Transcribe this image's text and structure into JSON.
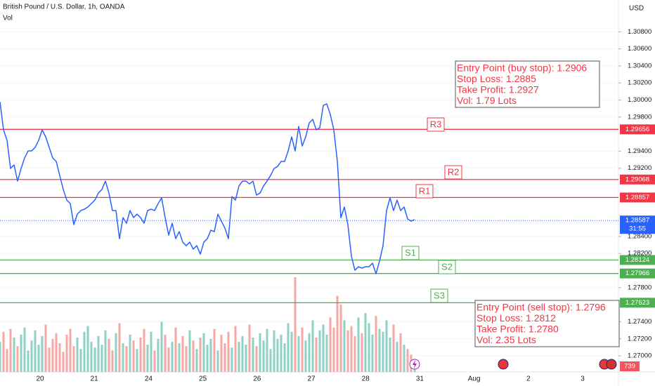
{
  "chart_data": {
    "type": "line",
    "title": "British Pound / U.S. Dollar, 1h, OANDA",
    "volume_label": "Vol",
    "currency": "USD",
    "color": "#2962ff",
    "ylim": [
      1.26811,
      1.31173
    ],
    "yticks": [
      {
        "value": 1.27,
        "label": "1.27000"
      },
      {
        "value": 1.272,
        "label": "1.27200"
      },
      {
        "value": 1.274,
        "label": "1.27400"
      },
      {
        "value": 1.278,
        "label": "1.27800"
      },
      {
        "value": 1.282,
        "label": "1.28200"
      },
      {
        "value": 1.284,
        "label": "1.28400"
      },
      {
        "value": 1.292,
        "label": "1.29200"
      },
      {
        "value": 1.294,
        "label": "1.29400"
      },
      {
        "value": 1.298,
        "label": "1.29800"
      },
      {
        "value": 1.3,
        "label": "1.30000"
      },
      {
        "value": 1.302,
        "label": "1.30200"
      },
      {
        "value": 1.304,
        "label": "1.30400"
      },
      {
        "value": 1.306,
        "label": "1.30600"
      },
      {
        "value": 1.308,
        "label": "1.30800"
      }
    ],
    "x_labels": [
      "20",
      "21",
      "24",
      "25",
      "26",
      "27",
      "28",
      "31",
      "Aug",
      "2",
      "3"
    ],
    "values": [
      1.29979,
      1.2965,
      1.29527,
      1.29197,
      1.29239,
      1.29049,
      1.29197,
      1.29321,
      1.29403,
      1.29403,
      1.29444,
      1.29527,
      1.2965,
      1.29568,
      1.29444,
      1.29321,
      1.2928,
      1.29115,
      1.28951,
      1.28827,
      1.28786,
      1.28539,
      1.28662,
      1.28704,
      1.2872,
      1.28745,
      1.28786,
      1.28827,
      1.28909,
      1.28951,
      1.29049,
      1.28909,
      1.28704,
      1.28704,
      1.28374,
      1.28621,
      1.28555,
      1.28704,
      1.28621,
      1.28662,
      1.28621,
      1.28555,
      1.28704,
      1.2872,
      1.28704,
      1.28786,
      1.28852,
      1.28621,
      1.28416,
      1.28555,
      1.28374,
      1.28457,
      1.28333,
      1.28292,
      1.28333,
      1.28251,
      1.28292,
      1.28193,
      1.28333,
      1.28374,
      1.28473,
      1.28457,
      1.28662,
      1.2858,
      1.28498,
      1.28374,
      1.28868,
      1.28827,
      1.28992,
      1.29049,
      1.29049,
      1.29016,
      1.29049,
      1.28885,
      1.28909,
      1.28992,
      1.29049,
      1.29115,
      1.29197,
      1.29222,
      1.2928,
      1.2928,
      1.29403,
      1.29568,
      1.29403,
      1.29691,
      1.29461,
      1.29568,
      1.29732,
      1.29774,
      1.2965,
      1.29675,
      1.29938,
      1.29955,
      1.29831,
      1.2965,
      1.2928,
      1.28621,
      1.28745,
      1.28539,
      1.28169,
      1.28004,
      1.28045,
      1.28029,
      1.28045,
      1.28045,
      1.28086,
      1.27963,
      1.28111,
      1.28292,
      1.28704,
      1.28852,
      1.28704,
      1.28827,
      1.28704,
      1.28745,
      1.28605,
      1.2858,
      1.28597
    ],
    "volume": [
      2100,
      2800,
      1600,
      3000,
      2400,
      1800,
      2600,
      3100,
      1500,
      2200,
      2900,
      1900,
      2500,
      3300,
      1700,
      2300,
      2700,
      2000,
      1400,
      2600,
      3000,
      1800,
      2400,
      1600,
      2800,
      3200,
      2100,
      1700,
      2500,
      1900,
      2900,
      2300,
      1500,
      2700,
      3400,
      2000,
      1800,
      2600,
      2200,
      1600,
      2400,
      3000,
      1900,
      2800,
      1500,
      2300,
      3500,
      2600,
      1700,
      2100,
      3100,
      2000,
      2500,
      1800,
      2900,
      2200,
      1600,
      2400,
      2700,
      1900,
      2300,
      3000,
      1500,
      2600,
      2000,
      2800,
      1700,
      3200,
      2100,
      2500,
      1900,
      3300,
      2400,
      1800,
      2700,
      2200,
      3000,
      1600,
      2900,
      2300,
      2600,
      2000,
      3400,
      2800,
      6600,
      2500,
      3100,
      2200,
      2700,
      3600,
      2400,
      2900,
      3300,
      2600,
      3800,
      3100,
      5300,
      4700,
      3600,
      2900,
      3200,
      2500,
      3800,
      2700,
      4100,
      3400,
      2600,
      3900,
      3000,
      2800,
      3600,
      2400,
      3300,
      2100,
      2700,
      1900,
      1600,
      1200,
      739
    ],
    "volume_colors": {
      "up": "#8fd1c5",
      "down": "#f7a8a6"
    },
    "last_price": 1.28587,
    "countdown": "31:55",
    "levels": [
      {
        "label": "R3",
        "value": 1.29656,
        "color": "#f23645"
      },
      {
        "label": "R2",
        "value": 1.29068,
        "color": "#f23645"
      },
      {
        "label": "R1",
        "value": 1.28857,
        "color": "#f23645"
      },
      {
        "label": "S1",
        "value": 1.28124,
        "color": "#4caf50"
      },
      {
        "label": "S2",
        "value": 1.27966,
        "color": "#4caf50"
      },
      {
        "label": "S3",
        "value": 1.27623,
        "color": "#4caf50"
      }
    ],
    "annotations": [
      {
        "lines": [
          "Entry Point (buy stop): 1.2906",
          "Stop Loss: 1.2885",
          "Take Profit:  1.2927",
          "Vol: 1.79 Lots"
        ]
      },
      {
        "lines": [
          "Entry Point (sell stop): 1.2796",
          "Stop Loss: 1.2812",
          "Take Profit: 1.2780",
          "Vol: 2.35 Lots"
        ]
      }
    ]
  }
}
